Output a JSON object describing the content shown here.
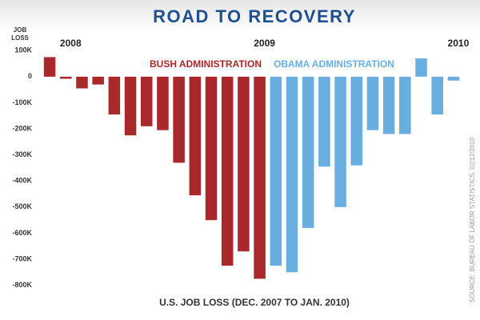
{
  "chart_data": {
    "type": "bar",
    "title": "ROAD TO RECOVERY",
    "y_label": "JOB LOSS",
    "x_label": "U.S. JOB LOSS (DEC. 2007 TO JAN. 2010)",
    "source": "SOURCE: BUREAU OF LABOR STATISTICS, 02/12/2010",
    "categories": [
      null,
      "2008",
      null,
      null,
      null,
      null,
      null,
      null,
      null,
      null,
      null,
      null,
      null,
      "2009",
      null,
      null,
      null,
      null,
      null,
      null,
      null,
      null,
      null,
      null,
      null,
      "2010"
    ],
    "series": [
      {
        "name": "BUSH ADMINISTRATION",
        "color": "#a8282b",
        "values": [
          75000,
          -8000,
          -45000,
          -30000,
          -145000,
          -225000,
          -190000,
          -205000,
          -330000,
          -455000,
          -550000,
          -725000,
          -670000,
          -775000,
          null,
          null,
          null,
          null,
          null,
          null,
          null,
          null,
          null,
          null,
          null,
          null
        ]
      },
      {
        "name": "OBAMA ADMINISTRATION",
        "color": "#6aaedf",
        "values": [
          null,
          null,
          null,
          null,
          null,
          null,
          null,
          null,
          null,
          null,
          null,
          null,
          null,
          null,
          -725000,
          -750000,
          -580000,
          -345000,
          -500000,
          -340000,
          -205000,
          -220000,
          -220000,
          70000,
          -145000,
          -15000
        ]
      }
    ],
    "ylim": [
      -830000,
      110000
    ],
    "yticks": [
      {
        "value": 100000,
        "label": "100K"
      },
      0,
      {
        "value": -100000,
        "label": "-100K"
      },
      {
        "value": -200000,
        "label": "-200K"
      },
      {
        "value": -300000,
        "label": "-300K"
      },
      {
        "value": -400000,
        "label": "-400K"
      },
      {
        "value": -500000,
        "label": "-500K"
      },
      {
        "value": -600000,
        "label": "-600K"
      },
      {
        "value": -700000,
        "label": "-700K"
      },
      {
        "value": -800000,
        "label": "-800K"
      }
    ],
    "grid": false
  }
}
